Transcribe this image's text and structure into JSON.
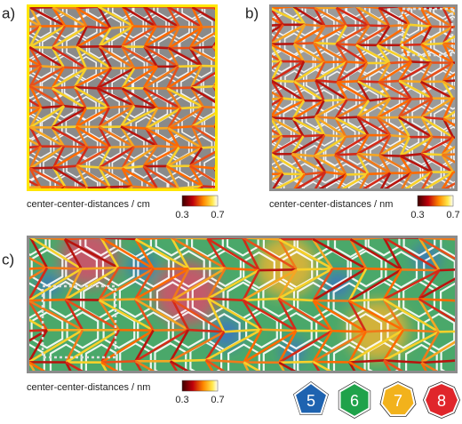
{
  "panels": [
    {
      "label": "a)",
      "caption": "center-center-distances / cm",
      "scale_min": 0.3,
      "scale_max": 0.7
    },
    {
      "label": "b)",
      "caption": "center-center-distances / nm",
      "scale_min": 0.3,
      "scale_max": 0.7
    },
    {
      "label": "c)",
      "caption": "center-center-distances / nm",
      "scale_min": 0.3,
      "scale_max": 0.7
    }
  ],
  "legend": [
    {
      "label": 5,
      "color": "#1e63b0"
    },
    {
      "label": 6,
      "color": "#1fa24a"
    },
    {
      "label": 7,
      "color": "#f2b21c"
    },
    {
      "label": 8,
      "color": "#e0262b"
    }
  ]
}
